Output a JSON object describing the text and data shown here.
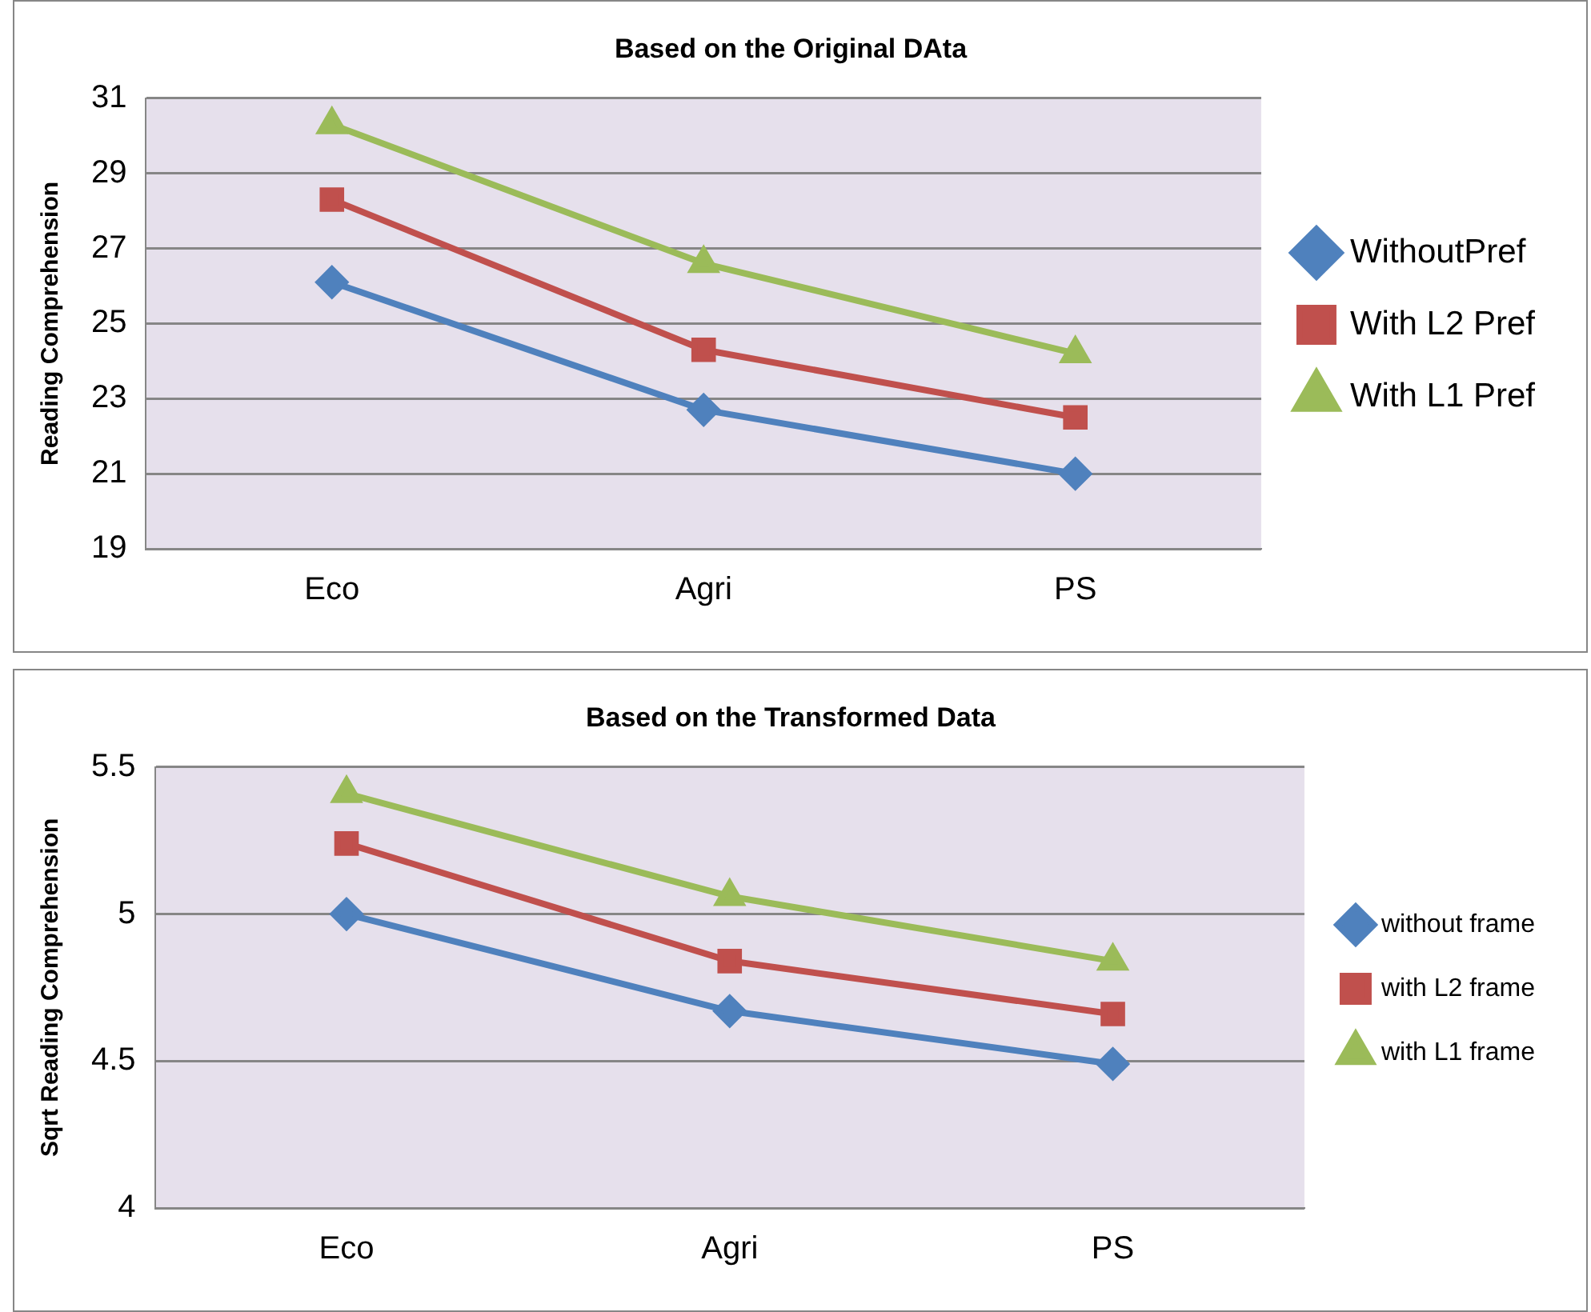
{
  "chart_data": [
    {
      "type": "line",
      "title": "Based on the Original DAta",
      "ylabel": "Reading Comprehension",
      "categories": [
        "Eco",
        "Agri",
        "PS"
      ],
      "ylim": [
        19,
        31
      ],
      "yticks": [
        19,
        21,
        23,
        25,
        27,
        29,
        31
      ],
      "grid": "y",
      "legend": "right",
      "series": [
        {
          "name": "WithoutPref",
          "color": "#4f81bd",
          "marker": "diamond",
          "values": [
            26.1,
            22.7,
            21.0
          ]
        },
        {
          "name": "With L2 Pref",
          "color": "#c0504d",
          "marker": "square",
          "values": [
            28.3,
            24.3,
            22.5
          ]
        },
        {
          "name": "With L1 Pref",
          "color": "#9bbb59",
          "marker": "triangle",
          "values": [
            30.3,
            26.6,
            24.2
          ]
        }
      ]
    },
    {
      "type": "line",
      "title": "Based on the Transformed Data",
      "ylabel": "Sqrt Reading Comprehension",
      "categories": [
        "Eco",
        "Agri",
        "PS"
      ],
      "ylim": [
        4,
        5.5
      ],
      "yticks": [
        4,
        4.5,
        5,
        5.5
      ],
      "grid": "y",
      "legend": "right",
      "series": [
        {
          "name": "without frame",
          "color": "#4f81bd",
          "marker": "diamond",
          "values": [
            5.0,
            4.67,
            4.49
          ]
        },
        {
          "name": "with L2 frame",
          "color": "#c0504d",
          "marker": "square",
          "values": [
            5.24,
            4.84,
            4.66
          ]
        },
        {
          "name": "with L1 frame",
          "color": "#9bbb59",
          "marker": "triangle",
          "values": [
            5.41,
            5.06,
            4.84
          ]
        }
      ]
    }
  ]
}
